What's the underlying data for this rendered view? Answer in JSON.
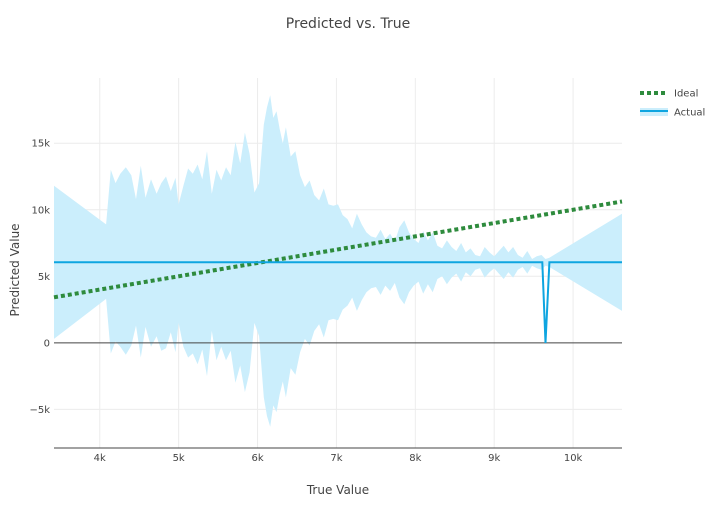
{
  "chart_data": {
    "type": "line",
    "title": "Predicted vs. True",
    "xlabel": "True Value",
    "ylabel": "Predicted Value",
    "xlim": [
      3420,
      10620
    ],
    "ylim": [
      -7900,
      19900
    ],
    "grid": true,
    "legend_position": "top-right",
    "x_ticks": [
      {
        "value": 4000,
        "label": "4k"
      },
      {
        "value": 5000,
        "label": "5k"
      },
      {
        "value": 6000,
        "label": "6k"
      },
      {
        "value": 7000,
        "label": "7k"
      },
      {
        "value": 8000,
        "label": "8k"
      },
      {
        "value": 9000,
        "label": "9k"
      },
      {
        "value": 10000,
        "label": "10k"
      }
    ],
    "y_ticks": [
      {
        "value": -5000,
        "label": "−5k"
      },
      {
        "value": 0,
        "label": "0"
      },
      {
        "value": 5000,
        "label": "5k"
      },
      {
        "value": 10000,
        "label": "10k"
      },
      {
        "value": 15000,
        "label": "15k"
      }
    ],
    "series": [
      {
        "name": "Ideal",
        "style": "dotted",
        "color": "#2e8b3d",
        "x": [
          3420,
          10620
        ],
        "y": [
          3420,
          10620
        ]
      },
      {
        "name": "Actual",
        "style": "solid",
        "color": "#0ea5e0",
        "band_color": "#cbeefc",
        "x": [
          3420,
          9570,
          9610,
          9650,
          9700,
          10620
        ],
        "y": [
          6050,
          6050,
          6050,
          0,
          6050,
          6050
        ],
        "band": {
          "x": [
            3420,
            4080,
            4140,
            4200,
            4260,
            4330,
            4400,
            4460,
            4520,
            4580,
            4650,
            4720,
            4780,
            4840,
            4900,
            4960,
            5000,
            5060,
            5120,
            5180,
            5240,
            5300,
            5360,
            5420,
            5480,
            5540,
            5600,
            5660,
            5720,
            5780,
            5840,
            5900,
            5960,
            6020,
            6080,
            6120,
            6160,
            6200,
            6240,
            6280,
            6320,
            6360,
            6420,
            6480,
            6540,
            6600,
            6660,
            6720,
            6780,
            6840,
            6900,
            6960,
            7020,
            7080,
            7140,
            7200,
            7260,
            7320,
            7380,
            7440,
            7500,
            7560,
            7620,
            7680,
            7740,
            7800,
            7860,
            7920,
            7980,
            8040,
            8100,
            8160,
            8220,
            8280,
            8340,
            8400,
            8460,
            8520,
            8580,
            8640,
            8700,
            8760,
            8820,
            8880,
            8940,
            9000,
            9060,
            9120,
            9180,
            9240,
            9300,
            9360,
            9420,
            9480,
            9540,
            9600,
            9650,
            9700,
            10620
          ],
          "upper": [
            11800,
            8900,
            13000,
            12000,
            12700,
            13200,
            12600,
            10800,
            13300,
            10900,
            12300,
            11200,
            12000,
            12500,
            11400,
            12400,
            10400,
            11800,
            13100,
            12700,
            13400,
            12300,
            14400,
            11200,
            13000,
            12200,
            13200,
            12600,
            15100,
            13500,
            15800,
            14200,
            11300,
            12000,
            16400,
            17700,
            18600,
            16900,
            17400,
            16100,
            15000,
            16200,
            14000,
            14400,
            12600,
            11700,
            12200,
            11100,
            10700,
            11600,
            10400,
            10300,
            10400,
            9600,
            9300,
            8600,
            9700,
            8900,
            8300,
            8000,
            7900,
            8500,
            7800,
            8200,
            7600,
            8700,
            9200,
            8300,
            7800,
            7500,
            8400,
            7700,
            8300,
            7300,
            7100,
            7700,
            7200,
            6900,
            7500,
            6800,
            7100,
            6600,
            6500,
            7200,
            6800,
            6500,
            6900,
            7300,
            6800,
            7200,
            6600,
            6400,
            6900,
            6300,
            6500,
            6600,
            6300,
            6400,
            9700
          ],
          "lower": [
            300,
            3300,
            -800,
            100,
            -300,
            -900,
            -200,
            1300,
            -1100,
            1200,
            -300,
            500,
            -600,
            -400,
            800,
            -700,
            1500,
            -300,
            -1100,
            -800,
            -1600,
            -500,
            -2500,
            900,
            -1300,
            -300,
            -1300,
            -600,
            -3000,
            -1700,
            -3700,
            -2200,
            1500,
            500,
            -4100,
            -5500,
            -6300,
            -4700,
            -5200,
            -3900,
            -2900,
            -4100,
            -1900,
            -2400,
            -700,
            300,
            -200,
            900,
            1400,
            400,
            1700,
            1800,
            1700,
            2500,
            2800,
            3400,
            2400,
            3200,
            3800,
            4100,
            4200,
            3600,
            4300,
            3900,
            4500,
            3400,
            2900,
            3800,
            4300,
            4600,
            3700,
            4400,
            3800,
            4800,
            5000,
            4400,
            4900,
            5200,
            4600,
            5300,
            5000,
            5500,
            5600,
            4900,
            5300,
            5600,
            5200,
            4800,
            5300,
            4900,
            5500,
            5700,
            5200,
            5800,
            5600,
            5500,
            5800,
            5700,
            2400
          ]
        }
      }
    ]
  }
}
